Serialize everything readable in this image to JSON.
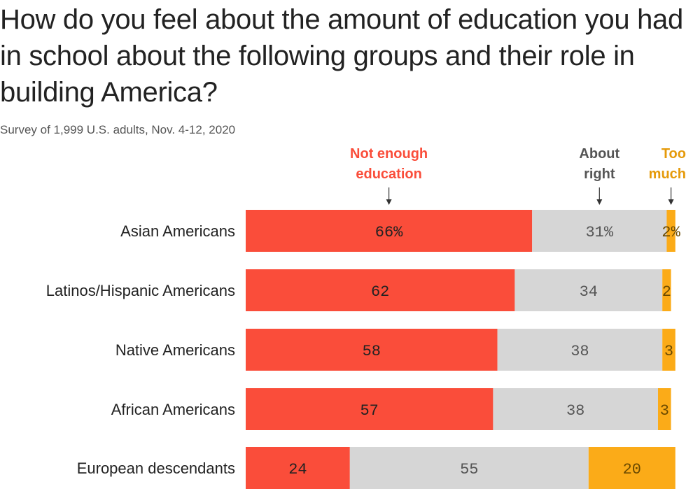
{
  "chart_data": {
    "type": "bar",
    "orientation": "horizontal",
    "stacked": true,
    "title": "How do you feel about the amount of education you had in school about the following groups and their role in building America?",
    "subtitle": "Survey of 1,999 U.S. adults, Nov. 4-12, 2020",
    "categories": [
      "Asian Americans",
      "Latinos/Hispanic Americans",
      "Native Americans",
      "African Americans",
      "European descendants"
    ],
    "series": [
      {
        "name": "Not enough education",
        "header_lines": [
          "Not enough",
          "education"
        ],
        "color": "#fa4d3a",
        "text_color": "#fa4d3a",
        "values": [
          66,
          62,
          58,
          57,
          24
        ],
        "labels": [
          "66%",
          "62",
          "58",
          "57",
          "24"
        ]
      },
      {
        "name": "About right",
        "header_lines": [
          "About",
          "right"
        ],
        "color": "#d6d6d6",
        "text_color": "#555555",
        "values": [
          31,
          34,
          38,
          38,
          55
        ],
        "labels": [
          "31%",
          "34",
          "38",
          "38",
          "55"
        ]
      },
      {
        "name": "Too much",
        "header_lines": [
          "Too",
          "much"
        ],
        "color": "#fbab18",
        "text_color": "#e59a0a",
        "values": [
          2,
          2,
          3,
          3,
          20
        ],
        "labels": [
          "2%",
          "2",
          "3",
          "3",
          "20"
        ]
      }
    ],
    "xlim": [
      0,
      100
    ],
    "grid": false,
    "legend": "top"
  }
}
